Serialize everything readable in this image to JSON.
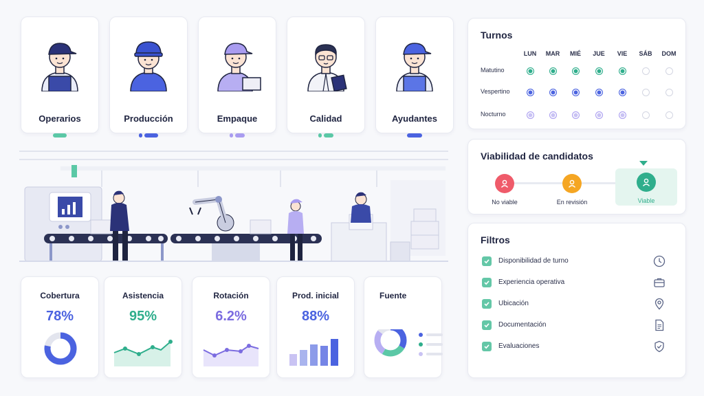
{
  "roles": [
    {
      "label": "Operarios",
      "accent": "#5bc8a6"
    },
    {
      "label": "Producción",
      "accent": "#4b63e0"
    },
    {
      "label": "Empaque",
      "accent": "#a99cf0"
    },
    {
      "label": "Calidad",
      "accent": "#5bc8a6"
    },
    {
      "label": "Ayudantes",
      "accent": "#4b63e0"
    }
  ],
  "kpis": [
    {
      "title": "Cobertura",
      "value": "78%",
      "color": "#4b63e0",
      "fraction": 0.78
    },
    {
      "title": "Asistencia",
      "value": "95%",
      "color": "#2fae8c"
    },
    {
      "title": "Rotación",
      "value": "6.2%",
      "color": "#7b6ce0"
    },
    {
      "title": "Prod. inicial",
      "value": "88%",
      "color": "#4b63e0"
    },
    {
      "title": "Fuente",
      "value": ""
    }
  ],
  "turnos": {
    "title": "Turnos",
    "days": [
      "LUN",
      "MAR",
      "MIÉ",
      "JUE",
      "VIE",
      "SÁB",
      "DOM"
    ],
    "shifts": [
      {
        "label": "Matutino",
        "color": "#2fae8c",
        "active": [
          1,
          1,
          1,
          1,
          1,
          0,
          0
        ]
      },
      {
        "label": "Vespertino",
        "color": "#4b63e0",
        "active": [
          1,
          1,
          1,
          1,
          1,
          0,
          0
        ]
      },
      {
        "label": "Nocturno",
        "color": "#c9c3f3",
        "active": [
          1,
          1,
          1,
          1,
          1,
          0,
          0
        ]
      }
    ]
  },
  "viabilidad": {
    "title": "Viabilidad de candidatos",
    "stages": [
      {
        "label": "No viable",
        "color": "#ef5b6a"
      },
      {
        "label": "En revisión",
        "color": "#f5a623"
      },
      {
        "label": "Viable",
        "color": "#2fae8c",
        "selected": true
      }
    ]
  },
  "filtros": {
    "title": "Filtros",
    "items": [
      {
        "label": "Disponibilidad de turno",
        "icon": "clock-icon"
      },
      {
        "label": "Experiencia operativa",
        "icon": "briefcase-icon"
      },
      {
        "label": "Ubicación",
        "icon": "location-pin-icon"
      },
      {
        "label": "Documentación",
        "icon": "document-icon"
      },
      {
        "label": "Evaluaciones",
        "icon": "shield-check-icon"
      }
    ]
  }
}
